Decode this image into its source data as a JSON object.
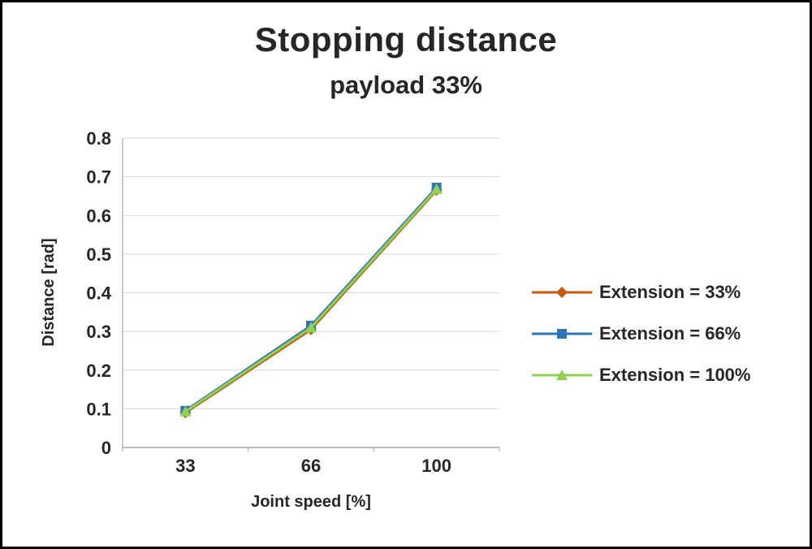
{
  "chart_data": {
    "type": "line",
    "title": "Stopping distance",
    "subtitle": "payload 33%",
    "xlabel": "Joint speed [%]",
    "ylabel": "Distance [rad]",
    "categories": [
      "33",
      "66",
      "100"
    ],
    "ylim": [
      0,
      0.8
    ],
    "ytick_step": 0.1,
    "ytick_labels": [
      "0",
      "0.1",
      "0.2",
      "0.3",
      "0.4",
      "0.5",
      "0.6",
      "0.7",
      "0.8"
    ],
    "grid": true,
    "legend_position": "right",
    "colors": {
      "gridline": "#d9d9d9",
      "axis": "#a6a6a6",
      "text": "#262626"
    },
    "series": [
      {
        "name": "Extension = 33%",
        "marker": "diamond",
        "color": "#c55a11",
        "values": [
          0.09,
          0.305,
          0.665
        ]
      },
      {
        "name": "Extension = 66%",
        "marker": "square",
        "color": "#2e75b6",
        "values": [
          0.095,
          0.315,
          0.672
        ]
      },
      {
        "name": "Extension = 100%",
        "marker": "triangle",
        "color": "#92d050",
        "values": [
          0.093,
          0.31,
          0.668
        ]
      }
    ]
  }
}
